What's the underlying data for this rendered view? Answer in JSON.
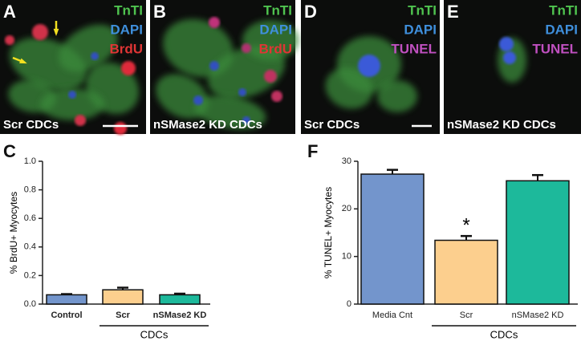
{
  "panels": [
    {
      "letter": "A",
      "stains": [
        {
          "name": "TnTI",
          "color": "#4fc34f"
        },
        {
          "name": "DAPI",
          "color": "#3f8fdc"
        },
        {
          "name": "BrdU",
          "color": "#e03535"
        }
      ],
      "caption": "Scr CDCs"
    },
    {
      "letter": "B",
      "stains": [
        {
          "name": "TnTI",
          "color": "#4fc34f"
        },
        {
          "name": "DAPI",
          "color": "#3f8fdc"
        },
        {
          "name": "BrdU",
          "color": "#e03535"
        }
      ],
      "caption": "nSMase2 KD CDCs"
    },
    {
      "letter": "D",
      "stains": [
        {
          "name": "TnTI",
          "color": "#4fc34f"
        },
        {
          "name": "DAPI",
          "color": "#3f8fdc"
        },
        {
          "name": "TUNEL",
          "color": "#c050c0"
        }
      ],
      "caption": "Scr CDCs"
    },
    {
      "letter": "E",
      "stains": [
        {
          "name": "TnTI",
          "color": "#4fc34f"
        },
        {
          "name": "DAPI",
          "color": "#3f8fdc"
        },
        {
          "name": "TUNEL",
          "color": "#c050c0"
        }
      ],
      "caption": "nSMase2 KD CDCs"
    }
  ],
  "chart_data": [
    {
      "type": "bar",
      "letter": "C",
      "ylabel": "% BrdU+ Myocytes",
      "categories": [
        "Control",
        "Scr",
        "nSMase2 KD"
      ],
      "group_label": "CDCs",
      "values": [
        0.065,
        0.1,
        0.065
      ],
      "errors": [
        0.005,
        0.015,
        0.008
      ],
      "colors": [
        "#7395cc",
        "#fccf8e",
        "#1db99b"
      ],
      "ylim": [
        0,
        1
      ],
      "yticks": [
        {
          "value": 0,
          "label": "0.0"
        },
        {
          "value": 0.2,
          "label": "0.2"
        },
        {
          "value": 0.4,
          "label": "0.4"
        },
        {
          "value": 0.6,
          "label": "0.6"
        },
        {
          "value": 0.8,
          "label": "0.8"
        },
        {
          "value": 1,
          "label": "1.0"
        }
      ]
    },
    {
      "type": "bar",
      "letter": "F",
      "ylabel": "% TUNEL+ Myocytes",
      "categories": [
        "Media Cnt",
        "Scr",
        "nSMase2 KD"
      ],
      "group_label": "CDCs",
      "values": [
        27.3,
        13.4,
        25.9
      ],
      "errors": [
        0.9,
        0.9,
        1.2
      ],
      "colors": [
        "#7395cc",
        "#fccf8e",
        "#1db99b"
      ],
      "annotation": "*",
      "ylim": [
        0,
        30
      ],
      "yticks": [
        0,
        10,
        20,
        30
      ]
    }
  ]
}
